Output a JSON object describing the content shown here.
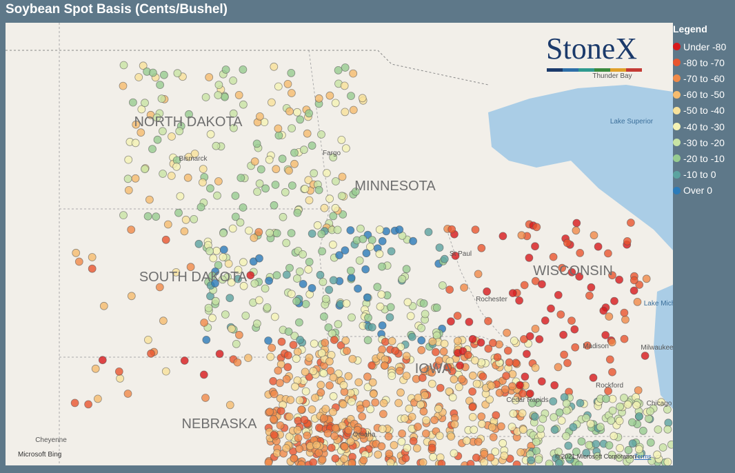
{
  "header": {
    "title": "Soybean Spot Basis (Cents/Bushel)"
  },
  "legend": {
    "title": "Legend",
    "items": [
      {
        "label": "Under -80",
        "color": "#d7191c"
      },
      {
        "label": "-80 to -70",
        "color": "#e8552e"
      },
      {
        "label": "-70 to -60",
        "color": "#f08a48"
      },
      {
        "label": "-60 to -50",
        "color": "#f5bb6e"
      },
      {
        "label": "-50 to -40",
        "color": "#f7e19a"
      },
      {
        "label": "-40 to -30",
        "color": "#f4f2b4"
      },
      {
        "label": "-30 to -20",
        "color": "#c8e4a4"
      },
      {
        "label": "-20 to -10",
        "color": "#97cc90"
      },
      {
        "label": "-10 to 0",
        "color": "#5ba3a0"
      },
      {
        "label": "Over 0",
        "color": "#2b7bb9"
      }
    ]
  },
  "map": {
    "states": [
      "NORTH DAKOTA",
      "MINNESOTA",
      "SOUTH DAKOTA",
      "WISCONSIN",
      "NEBRASKA",
      "IOWA"
    ],
    "cities": [
      "Bismarck",
      "Fargo",
      "St Paul",
      "Rochester",
      "Madison",
      "Milwaukee",
      "Cedar Rapids",
      "Rockford",
      "Omaha",
      "Cheyenne",
      "Chicago",
      "Thunder Bay"
    ],
    "water": [
      "Lake Superior",
      "Lake Michigan"
    ],
    "logo": "StoneX",
    "attribution": {
      "provider": "Microsoft Bing",
      "copyright": "© 2021 Microsoft Corporation",
      "terms": "Terms"
    }
  }
}
